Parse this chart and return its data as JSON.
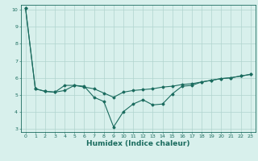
{
  "xlabel": "Humidex (Indice chaleur)",
  "ylabel": "",
  "xlim": [
    -0.5,
    23.5
  ],
  "ylim": [
    2.8,
    10.3
  ],
  "yticks": [
    3,
    4,
    5,
    6,
    7,
    8,
    9,
    10
  ],
  "xticks": [
    0,
    1,
    2,
    3,
    4,
    5,
    6,
    7,
    8,
    9,
    10,
    11,
    12,
    13,
    14,
    15,
    16,
    17,
    18,
    19,
    20,
    21,
    22,
    23
  ],
  "line1_x": [
    0,
    1,
    2,
    3,
    4,
    5,
    6,
    7,
    8,
    9,
    10,
    11,
    12,
    13,
    14,
    15,
    16,
    17,
    18,
    19,
    20,
    21,
    22,
    23
  ],
  "line1_y": [
    10.1,
    5.35,
    5.2,
    5.15,
    5.55,
    5.55,
    5.45,
    5.35,
    5.1,
    4.85,
    5.15,
    5.25,
    5.3,
    5.35,
    5.45,
    5.5,
    5.6,
    5.65,
    5.75,
    5.85,
    5.95,
    6.0,
    6.1,
    6.2
  ],
  "line2_x": [
    0,
    1,
    2,
    3,
    4,
    5,
    6,
    7,
    8,
    9,
    10,
    11,
    12,
    13,
    14,
    15,
    16,
    17,
    18,
    19,
    20,
    21,
    22,
    23
  ],
  "line2_y": [
    10.1,
    5.35,
    5.2,
    5.15,
    5.25,
    5.55,
    5.5,
    4.85,
    4.6,
    3.1,
    4.0,
    4.45,
    4.7,
    4.4,
    4.45,
    5.05,
    5.5,
    5.55,
    5.75,
    5.85,
    5.95,
    6.0,
    6.1,
    6.2
  ],
  "line_color": "#1a6b5e",
  "bg_color": "#d8f0ec",
  "grid_color": "#b0d4ce",
  "marker": "D",
  "marker_size": 1.5,
  "linewidth": 0.8,
  "tick_fontsize": 4.5,
  "xlabel_fontsize": 6.5
}
